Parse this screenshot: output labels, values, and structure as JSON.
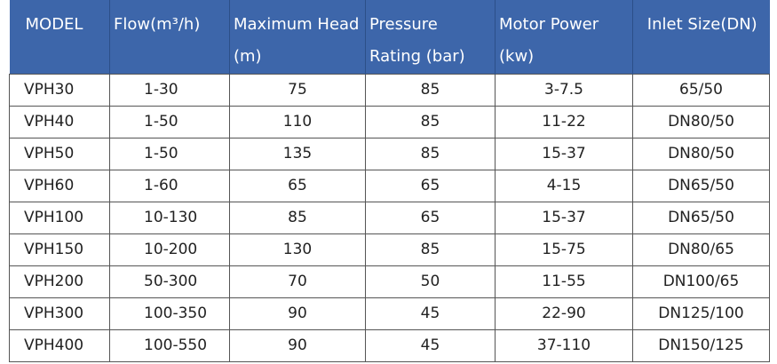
{
  "table": {
    "header": [
      "MODEL",
      "Flow(m³/h)",
      "Maximum Head (m)",
      "Pressure Rating (bar)",
      "Motor Power (kw)",
      "Inlet Size(DN)"
    ],
    "rows": [
      [
        "VPH30",
        "1-30",
        "75",
        "85",
        "3-7.5",
        "65/50"
      ],
      [
        "VPH40",
        "1-50",
        "110",
        "85",
        "11-22",
        "DN80/50"
      ],
      [
        "VPH50",
        "1-50",
        "135",
        "85",
        "15-37",
        "DN80/50"
      ],
      [
        "VPH60",
        "1-60",
        "65",
        "65",
        "4-15",
        "DN65/50"
      ],
      [
        "VPH100",
        "10-130",
        "85",
        "65",
        "15-37",
        "DN65/50"
      ],
      [
        "VPH150",
        "10-200",
        "130",
        "85",
        "15-75",
        "DN80/65"
      ],
      [
        "VPH200",
        "50-300",
        "70",
        "50",
        "11-55",
        "DN100/65"
      ],
      [
        "VPH300",
        "100-350",
        "90",
        "45",
        "22-90",
        "DN125/100"
      ],
      [
        "VPH400",
        "100-550",
        "90",
        "45",
        "37-110",
        "DN150/125"
      ]
    ]
  }
}
